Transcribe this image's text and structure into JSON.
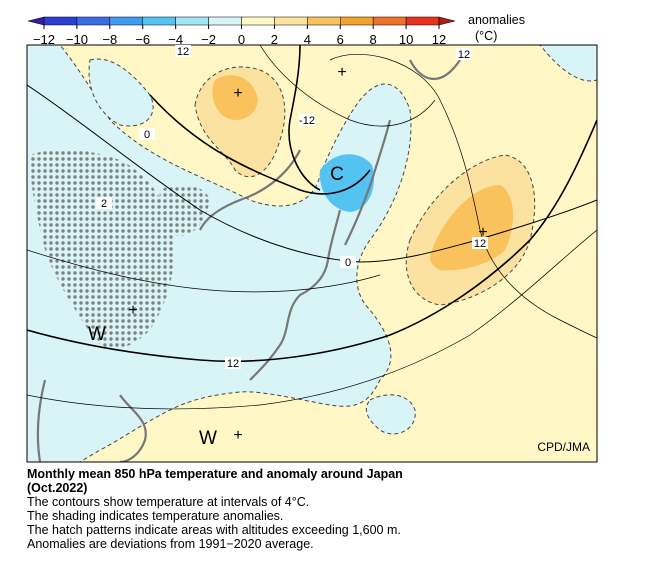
{
  "colorbar": {
    "title": "anomalies",
    "unit": "(°C)",
    "ticks": [
      {
        "value": -12,
        "label": "−12"
      },
      {
        "value": -10,
        "label": "−10"
      },
      {
        "value": -8,
        "label": "−8"
      },
      {
        "value": -6,
        "label": "−6"
      },
      {
        "value": -4,
        "label": "−4"
      },
      {
        "value": -2,
        "label": "−2"
      },
      0,
      2,
      4,
      6,
      8,
      10,
      12
    ],
    "colors": [
      "#2b3fd0",
      "#3a6de4",
      "#3f9cf0",
      "#55c3f2",
      "#a2e6f5",
      "#d8f4f7",
      "#fff8c6",
      "#fce2a0",
      "#f9c25c",
      "#f4a22e",
      "#f07228",
      "#e8321e"
    ],
    "under_color": "#3a1aa0",
    "over_color": "#b01a10"
  },
  "map": {
    "contour_labels": [
      "12",
      "12",
      "-12",
      "0",
      "2",
      "12",
      "0",
      "12"
    ],
    "symbols": [
      "C",
      "W",
      "W"
    ],
    "credit": "CPD/JMA"
  },
  "caption": {
    "title_lines": [
      "Monthly mean 850 hPa temperature and anomaly around Japan",
      "(Oct.2022)"
    ],
    "lines": [
      "The contours show temperature at intervals of 4°C.",
      "The shading indicates temperature anomalies.",
      "The hatch patterns indicate areas with altitudes exceeding 1,600 m.",
      "Anomalies are deviations from 1991−2020 average."
    ]
  }
}
